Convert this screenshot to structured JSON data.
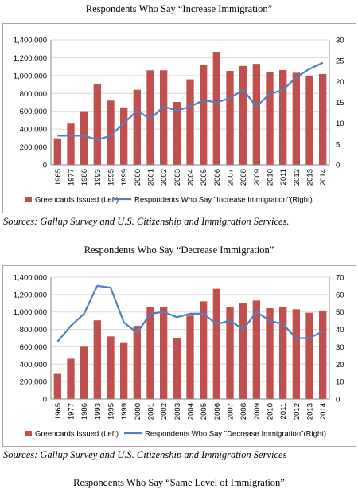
{
  "colors": {
    "bar": "#c0504d",
    "line": "#4f81bd",
    "grid": "#d9d9d9",
    "axis": "#868686"
  },
  "chart_data": [
    {
      "type": "bar",
      "title": "Respondents Who Say “Increase Immigration”",
      "source": "Sources: Gallup Survey and U.S. Citizenship and Immigration Services.",
      "categories": [
        "1965",
        "1977",
        "1986",
        "1993",
        "1995",
        "1999",
        "2000",
        "2001",
        "2002",
        "2003",
        "2004",
        "2005",
        "2006",
        "2007",
        "2008",
        "2009",
        "2010",
        "2011",
        "2012",
        "2013",
        "2014"
      ],
      "series": [
        {
          "name": "Greencards Issued (Left)",
          "type": "bar",
          "axis": "left",
          "values": [
            297000,
            462000,
            601000,
            904000,
            720000,
            644000,
            841000,
            1059000,
            1059000,
            704000,
            958000,
            1122000,
            1266000,
            1052000,
            1107000,
            1131000,
            1043000,
            1062000,
            1031000,
            991000,
            1017000
          ]
        },
        {
          "name": "Respondents Who Say \"Increase Immigration\"(Right)",
          "type": "line",
          "axis": "right",
          "values": [
            7,
            7,
            7,
            6,
            7,
            10,
            13,
            11,
            14,
            13,
            14,
            15.5,
            15,
            16,
            18,
            14,
            17,
            18,
            21,
            23,
            24.5
          ]
        }
      ],
      "y_left": {
        "ticks": [
          "0",
          "200,000",
          "400,000",
          "600,000",
          "800,000",
          "1,000,000",
          "1,200,000",
          "1,400,000"
        ],
        "lim": [
          0,
          1400000
        ]
      },
      "y_right": {
        "ticks": [
          "0",
          "5",
          "10",
          "15",
          "20",
          "25",
          "30"
        ],
        "lim": [
          0,
          30
        ]
      },
      "grid": true,
      "legend": "bottom"
    },
    {
      "type": "bar",
      "title": "Respondents Who Say “Decrease Immigration”",
      "source": "Sources: Gallup Survey and U.S. Citizenship and Immigration Services",
      "categories": [
        "1965",
        "1977",
        "1986",
        "1993",
        "1995",
        "1999",
        "2000",
        "2001",
        "2002",
        "2003",
        "2004",
        "2005",
        "2006",
        "2007",
        "2008",
        "2009",
        "2010",
        "2011",
        "2012",
        "2013",
        "2014"
      ],
      "series": [
        {
          "name": "Greencards Issued (Left)",
          "type": "bar",
          "axis": "left",
          "values": [
            297000,
            462000,
            601000,
            904000,
            720000,
            644000,
            841000,
            1059000,
            1059000,
            704000,
            958000,
            1122000,
            1266000,
            1052000,
            1107000,
            1131000,
            1043000,
            1062000,
            1031000,
            991000,
            1017000
          ]
        },
        {
          "name": "Respondents Who Say \"Decrease Immigration\"(Right)",
          "type": "line",
          "axis": "right",
          "values": [
            33,
            42,
            49,
            65,
            64,
            44,
            38,
            49,
            50,
            47,
            49,
            49,
            43,
            45,
            40,
            50,
            45,
            43,
            35,
            35,
            39
          ]
        }
      ],
      "y_left": {
        "ticks": [
          "0",
          "200,000",
          "400,000",
          "600,000",
          "800,000",
          "1,000,000",
          "1,200,000",
          "1,400,000"
        ],
        "lim": [
          0,
          1400000
        ]
      },
      "y_right": {
        "ticks": [
          "0",
          "10",
          "20",
          "30",
          "40",
          "50",
          "60",
          "70"
        ],
        "lim": [
          0,
          70
        ]
      },
      "grid": true,
      "legend": "bottom"
    }
  ],
  "footer_title": "Respondents Who Say “Same Level of Immigration”"
}
